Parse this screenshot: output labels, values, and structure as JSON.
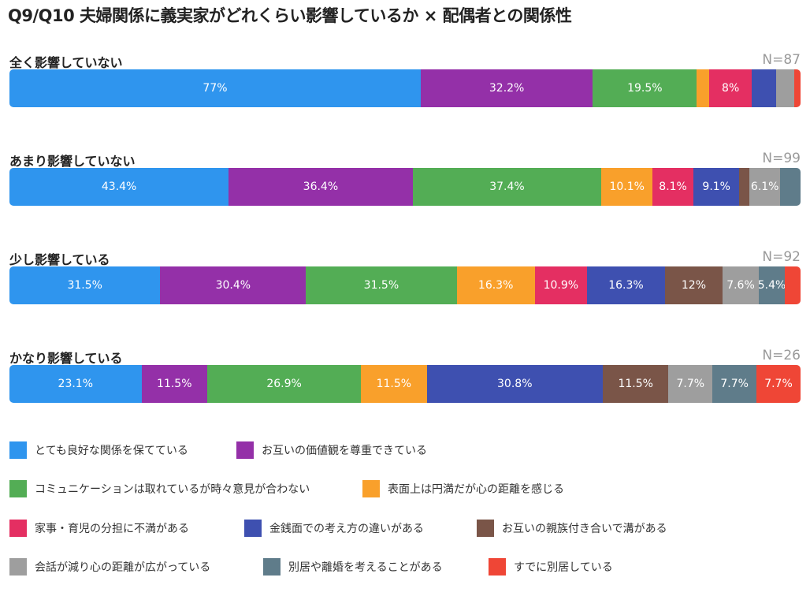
{
  "chart_data": {
    "type": "bar",
    "stacked": true,
    "normalized": true,
    "title": "Q9/Q10 夫婦関係に義実家がどれくらい影響しているか × 配偶者との関係性",
    "value_unit": "%",
    "series": [
      {
        "name": "とても良好な関係を保てている",
        "color": "#2f95ee"
      },
      {
        "name": "お互いの価値観を尊重できている",
        "color": "#9430a8"
      },
      {
        "name": "コミュニケーションは取れているが時々意見が合わない",
        "color": "#53ad55"
      },
      {
        "name": "表面上は円満だが心の距離を感じる",
        "color": "#f9a02b"
      },
      {
        "name": "家事・育児の分担に不満がある",
        "color": "#e42f62"
      },
      {
        "name": "金銭面での考え方の違いがある",
        "color": "#3e50b0"
      },
      {
        "name": "お互いの親族付き合いで溝がある",
        "color": "#7a5548"
      },
      {
        "name": "会話が減り心の距離が広がっている",
        "color": "#9e9e9e"
      },
      {
        "name": "別居や離婚を考えることがある",
        "color": "#5f7c8a"
      },
      {
        "name": "すでに別居している",
        "color": "#ef4636"
      }
    ],
    "categories": [
      {
        "label": "全く影響していない",
        "n": "N=87",
        "values": [
          77,
          32.2,
          19.5,
          2.3,
          8,
          4.6,
          0,
          3.4,
          0,
          1.1
        ]
      },
      {
        "label": "あまり影響していない",
        "n": "N=99",
        "values": [
          43.4,
          36.4,
          37.4,
          10.1,
          8.1,
          9.1,
          2.0,
          6.1,
          4.0,
          0
        ]
      },
      {
        "label": "少し影響している",
        "n": "N=92",
        "values": [
          31.5,
          30.4,
          31.5,
          16.3,
          10.9,
          16.3,
          12,
          7.6,
          5.4,
          3.3
        ]
      },
      {
        "label": "かなり影響している",
        "n": "N=26",
        "values": [
          23.1,
          11.5,
          26.9,
          11.5,
          0,
          30.8,
          11.5,
          7.7,
          7.7,
          7.7
        ]
      }
    ],
    "legend_position": "bottom"
  }
}
